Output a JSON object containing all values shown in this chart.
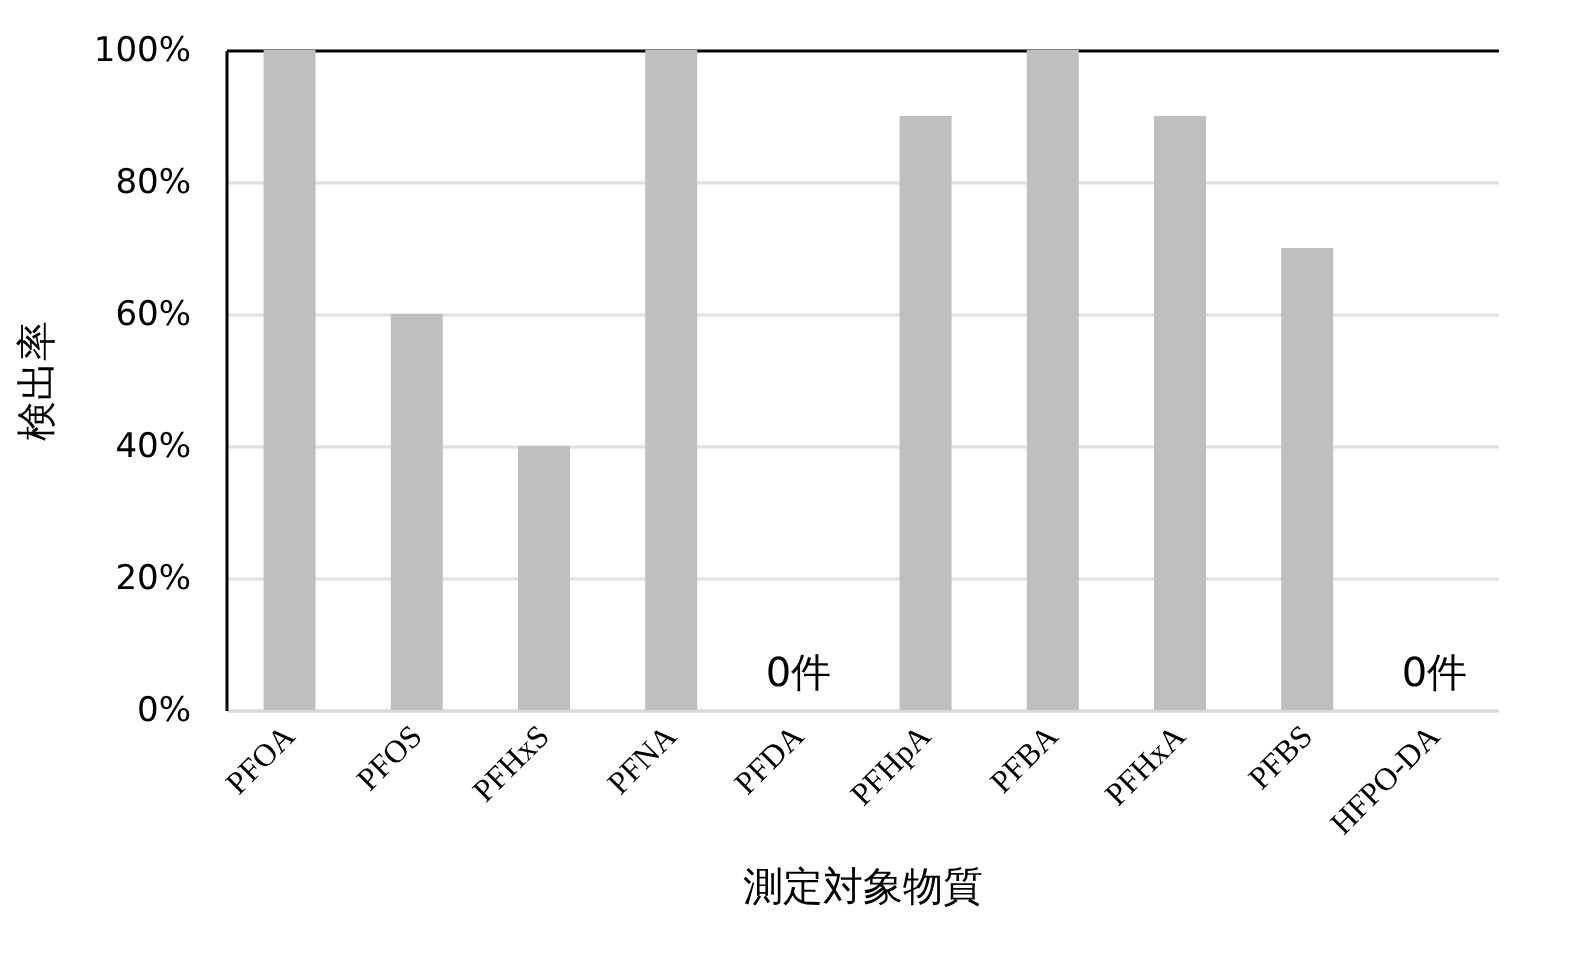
{
  "chart_data": {
    "type": "bar",
    "xlabel": "測定対象物質",
    "ylabel": "検出率",
    "categories": [
      "PFOA",
      "PFOS",
      "PFHxS",
      "PFNA",
      "PFDA",
      "PFHpA",
      "PFBA",
      "PFHxA",
      "PFBS",
      "HFPO-DA"
    ],
    "values": [
      100,
      60,
      40,
      100,
      0,
      90,
      100,
      90,
      70,
      0
    ],
    "color": "#bfbfbf",
    "ylim": [
      0,
      100
    ],
    "yticks": [
      {
        "value": 0,
        "label": "0%"
      },
      {
        "value": 20,
        "label": "20%"
      },
      {
        "value": 40,
        "label": "40%"
      },
      {
        "value": 60,
        "label": "60%"
      },
      {
        "value": 80,
        "label": "80%"
      },
      {
        "value": 100,
        "label": "100%"
      }
    ],
    "grid": "y",
    "annotations": [
      {
        "text": "0件",
        "x": "PFDA",
        "y": 0
      },
      {
        "text": "0件",
        "x": "HFPO-DA",
        "y": 0
      }
    ]
  }
}
